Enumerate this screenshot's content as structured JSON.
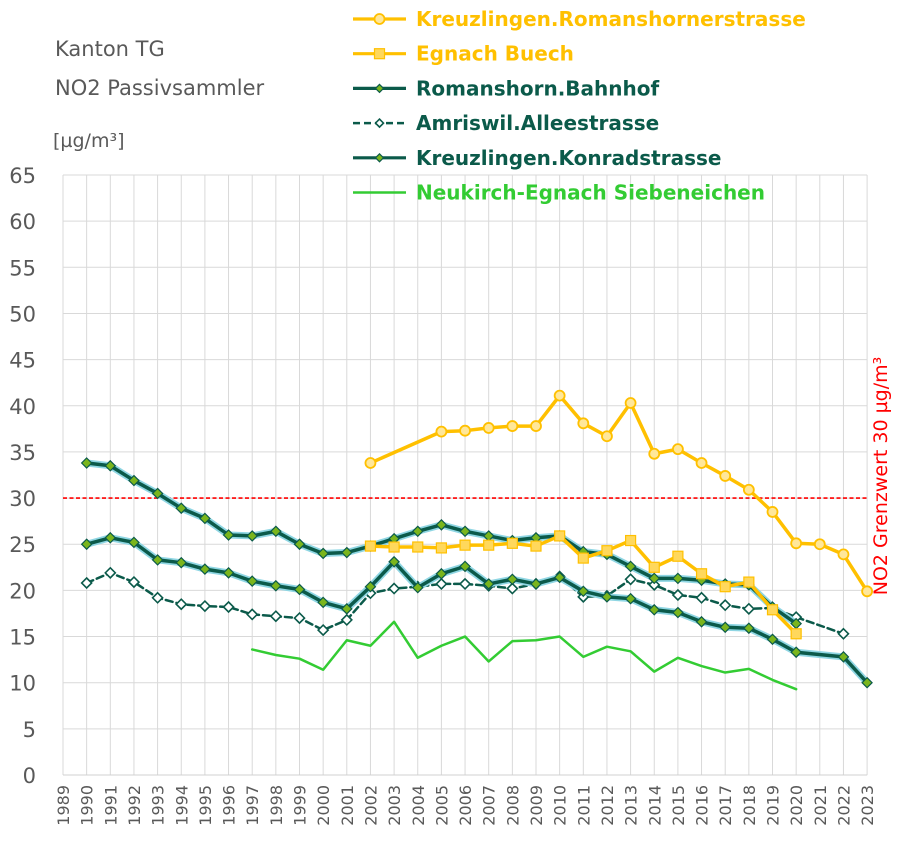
{
  "chart_data": {
    "type": "line",
    "title_lines": [
      "Kanton  TG",
      "NO2  Passivsammler"
    ],
    "unit": "[µg/m³]",
    "ylim": [
      0,
      65
    ],
    "ytick_step": 5,
    "grid": true,
    "x_categories": [
      "1989",
      "1990",
      "1991",
      "1992",
      "1993",
      "1994",
      "1995",
      "1996",
      "1997",
      "1998",
      "1999",
      "2000",
      "2001",
      "2002",
      "2003",
      "2004",
      "2005",
      "2006",
      "2007",
      "2008",
      "2009",
      "2010",
      "2011",
      "2012",
      "2013",
      "2014",
      "2015",
      "2016",
      "2017",
      "2018",
      "2019",
      "2020",
      "2021",
      "2022",
      "2023"
    ],
    "threshold": {
      "value": 30,
      "label": "NO2 Grenzwert   30 µg/m³",
      "color": "#ff0000"
    },
    "legend_position": "top-right",
    "series": [
      {
        "name": "Kreuzlingen.Romanshornerstrasse",
        "color": "#ffc000",
        "line_width": 3.5,
        "marker": "circle",
        "dashed": false,
        "x": [
          "2002",
          "2005",
          "2006",
          "2007",
          "2008",
          "2009",
          "2010",
          "2011",
          "2012",
          "2013",
          "2014",
          "2015",
          "2016",
          "2017",
          "2018",
          "2019",
          "2020",
          "2021",
          "2022",
          "2023"
        ],
        "y": [
          33.8,
          37.2,
          37.3,
          37.6,
          37.8,
          37.8,
          41.1,
          38.1,
          36.7,
          40.3,
          34.8,
          35.3,
          33.8,
          32.4,
          30.9,
          28.5,
          25.1,
          25.0,
          23.9,
          19.9
        ]
      },
      {
        "name": "Egnach  Buech",
        "color": "#ffc000",
        "line_width": 3.5,
        "marker": "square",
        "dashed": false,
        "x": [
          "2002",
          "2003",
          "2004",
          "2005",
          "2006",
          "2007",
          "2008",
          "2009",
          "2010",
          "2011",
          "2012",
          "2013",
          "2014",
          "2015",
          "2016",
          "2017",
          "2018",
          "2019",
          "2020"
        ],
        "y": [
          24.8,
          24.7,
          24.7,
          24.6,
          24.9,
          24.9,
          25.1,
          24.8,
          25.9,
          23.5,
          24.3,
          25.4,
          22.5,
          23.7,
          21.8,
          20.4,
          20.9,
          17.9,
          15.3
        ]
      },
      {
        "name": "Romanshorn.Bahnhof",
        "color": "#0b5a4a",
        "line_width": 3.5,
        "marker": "diamond",
        "dashed": false,
        "halo": true,
        "x": [
          "1990",
          "1991",
          "1992",
          "1993",
          "1994",
          "1995",
          "1996",
          "1997",
          "1998",
          "1999",
          "2000",
          "2001",
          "2002",
          "2003",
          "2004",
          "2005",
          "2006",
          "2007",
          "2008",
          "2009",
          "2010",
          "2011",
          "2012",
          "2013",
          "2014",
          "2015",
          "2016",
          "2017",
          "2018",
          "2019",
          "2020"
        ],
        "y": [
          33.8,
          33.5,
          31.9,
          30.5,
          28.9,
          27.8,
          26.0,
          25.9,
          26.4,
          25.0,
          24.0,
          24.1,
          24.8,
          25.6,
          26.4,
          27.1,
          26.4,
          25.9,
          25.4,
          25.7,
          25.9,
          24.2,
          23.9,
          22.6,
          21.3,
          21.3,
          21.1,
          20.7,
          20.6,
          18.2,
          16.4
        ]
      },
      {
        "name": "Amriswil.Alleestrasse",
        "color": "#0b5a4a",
        "line_width": 2.5,
        "marker": "diamond-open",
        "dashed": true,
        "x": [
          "1990",
          "1991",
          "1992",
          "1993",
          "1994",
          "1995",
          "1996",
          "1997",
          "1998",
          "1999",
          "2000",
          "2001",
          "2002",
          "2003",
          "2004",
          "2005",
          "2006",
          "2007",
          "2008",
          "2009",
          "2010",
          "2011",
          "2012",
          "2013",
          "2014",
          "2015",
          "2016",
          "2017",
          "2018",
          "2019",
          "2020",
          "2022"
        ],
        "y": [
          20.8,
          21.9,
          20.9,
          19.2,
          18.5,
          18.3,
          18.2,
          17.4,
          17.2,
          17.0,
          15.7,
          16.8,
          19.7,
          20.2,
          20.4,
          20.7,
          20.7,
          20.5,
          20.2,
          20.7,
          21.5,
          19.3,
          19.4,
          21.2,
          20.6,
          19.5,
          19.2,
          18.4,
          18.0,
          18.1,
          17.1,
          15.3
        ]
      },
      {
        "name": "Kreuzlingen.Konradstrasse",
        "color": "#0b5a4a",
        "line_width": 3.5,
        "marker": "diamond",
        "dashed": false,
        "halo": true,
        "x": [
          "1990",
          "1991",
          "1992",
          "1993",
          "1994",
          "1995",
          "1996",
          "1997",
          "1998",
          "1999",
          "2000",
          "2001",
          "2002",
          "2003",
          "2004",
          "2005",
          "2006",
          "2007",
          "2008",
          "2009",
          "2010",
          "2011",
          "2012",
          "2013",
          "2014",
          "2015",
          "2016",
          "2017",
          "2018",
          "2019",
          "2020",
          "2022",
          "2023"
        ],
        "y": [
          25.0,
          25.7,
          25.2,
          23.3,
          23.0,
          22.3,
          21.9,
          21.0,
          20.5,
          20.1,
          18.7,
          18.0,
          20.4,
          23.1,
          20.3,
          21.8,
          22.6,
          20.7,
          21.2,
          20.7,
          21.4,
          19.9,
          19.3,
          19.1,
          17.9,
          17.6,
          16.6,
          16.0,
          15.9,
          14.7,
          13.3,
          12.8,
          10.0
        ]
      },
      {
        "name": "Neukirch-Egnach  Siebeneichen",
        "color": "#33cc33",
        "line_width": 2.5,
        "marker": "none",
        "dashed": false,
        "x": [
          "1997",
          "1998",
          "1999",
          "2000",
          "2001",
          "2002",
          "2003",
          "2004",
          "2005",
          "2006",
          "2007",
          "2008",
          "2009",
          "2010",
          "2011",
          "2012",
          "2013",
          "2014",
          "2015",
          "2016",
          "2017",
          "2018",
          "2019",
          "2020"
        ],
        "y": [
          13.6,
          13.0,
          12.6,
          11.4,
          14.6,
          14.0,
          16.6,
          12.7,
          14.0,
          15.0,
          12.3,
          14.5,
          14.6,
          15.0,
          12.8,
          13.9,
          13.4,
          11.2,
          12.7,
          11.8,
          11.1,
          11.5,
          10.3,
          9.3
        ]
      }
    ]
  }
}
